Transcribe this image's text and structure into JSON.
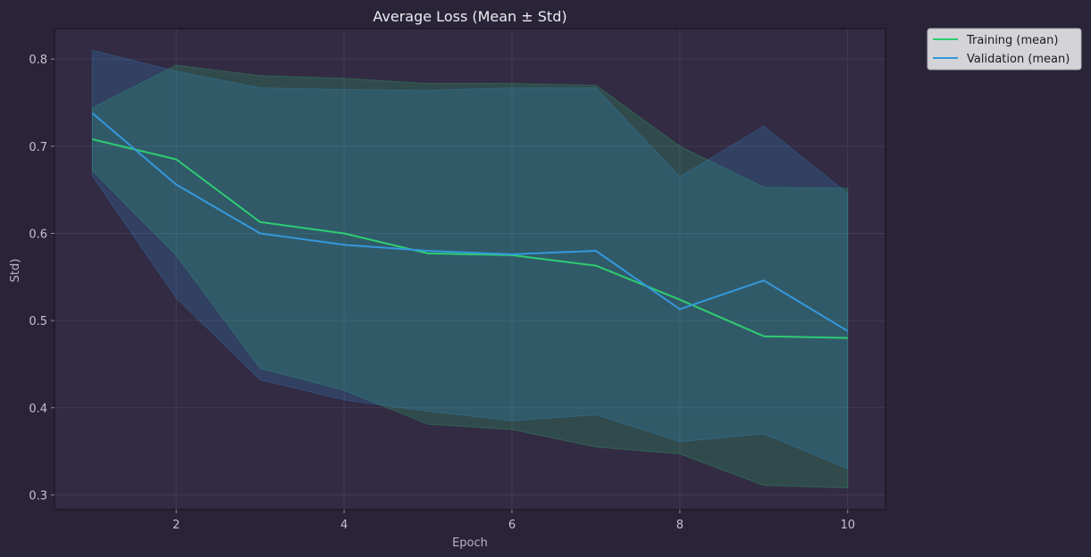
{
  "chart_data": {
    "type": "line",
    "title": "Average Loss (Mean ± Std)",
    "xlabel": "Epoch",
    "ylabel": "Std)",
    "xlim": [
      0.55,
      10.45
    ],
    "ylim": [
      0.283,
      0.835
    ],
    "xticks": [
      2,
      4,
      6,
      8,
      10
    ],
    "yticks": [
      0.3,
      0.4,
      0.5,
      0.6,
      0.7,
      0.8
    ],
    "grid": true,
    "legend_position": "outside top-right",
    "x": [
      1,
      2,
      3,
      4,
      5,
      6,
      7,
      8,
      9,
      10
    ],
    "series": [
      {
        "name": "Training (mean)",
        "color": "#2ecc71",
        "mean": [
          0.708,
          0.685,
          0.613,
          0.6,
          0.577,
          0.575,
          0.563,
          0.524,
          0.482,
          0.48
        ],
        "upper": [
          0.744,
          0.793,
          0.781,
          0.778,
          0.772,
          0.772,
          0.77,
          0.7,
          0.653,
          0.652
        ],
        "lower": [
          0.672,
          0.575,
          0.445,
          0.42,
          0.381,
          0.375,
          0.355,
          0.347,
          0.311,
          0.308
        ]
      },
      {
        "name": "Validation (mean)",
        "color": "#3498db",
        "mean": [
          0.738,
          0.656,
          0.6,
          0.587,
          0.58,
          0.576,
          0.58,
          0.513,
          0.546,
          0.488
        ],
        "upper": [
          0.81,
          0.786,
          0.767,
          0.765,
          0.764,
          0.767,
          0.767,
          0.665,
          0.723,
          0.646
        ],
        "lower": [
          0.666,
          0.526,
          0.432,
          0.409,
          0.396,
          0.385,
          0.392,
          0.361,
          0.37,
          0.33
        ]
      }
    ]
  },
  "colors": {
    "background": "#2a2438",
    "plot_background": "#332b44",
    "grid": "#433b55",
    "axis": "#15121d"
  }
}
